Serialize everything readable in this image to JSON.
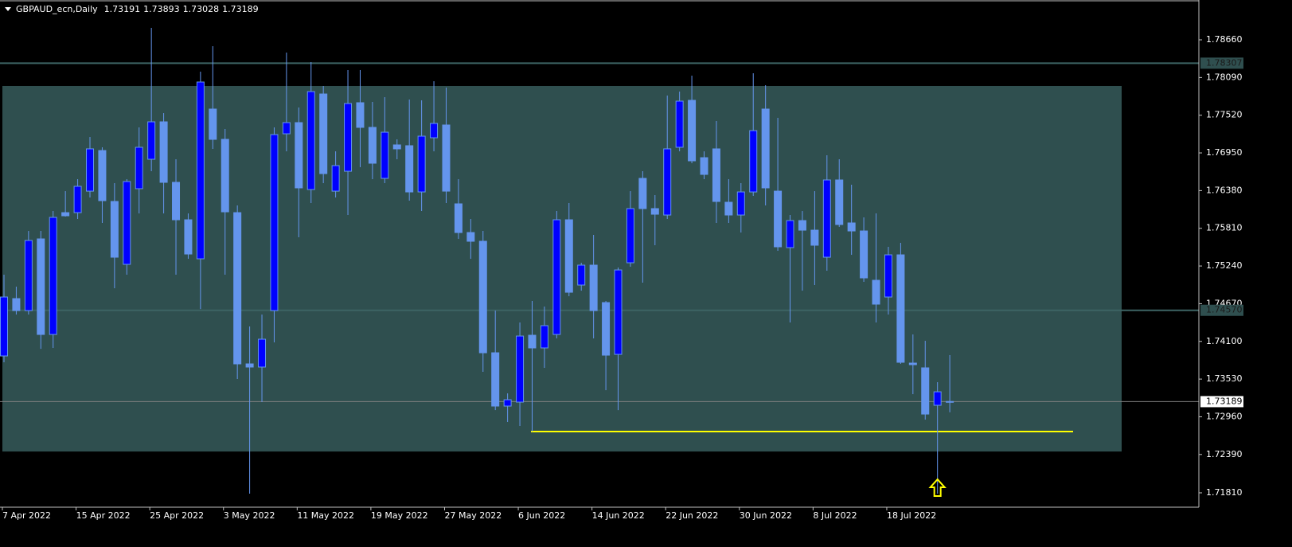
{
  "chart_data": {
    "type": "candlestick",
    "title": "GBPAUD_ecn,Daily",
    "categories": [
      "7 Apr 2022",
      null,
      null,
      null,
      null,
      null,
      "15 Apr 2022",
      null,
      null,
      null,
      null,
      null,
      "25 Apr 2022",
      null,
      null,
      null,
      null,
      null,
      "3 May 2022",
      null,
      null,
      null,
      null,
      null,
      "11 May 2022",
      null,
      null,
      null,
      null,
      null,
      "19 May 2022",
      null,
      null,
      null,
      null,
      null,
      "27 May 2022",
      null,
      null,
      null,
      null,
      null,
      "6 Jun 2022",
      null,
      null,
      null,
      null,
      null,
      "14 Jun 2022",
      null,
      null,
      null,
      null,
      null,
      "22 Jun 2022",
      null,
      null,
      null,
      null,
      null,
      "30 Jun 2022",
      null,
      null,
      null,
      null,
      null,
      "8 Jul 2022",
      null,
      null,
      null,
      null,
      null,
      "18 Jul 2022",
      null,
      null,
      null,
      null,
      null
    ],
    "open": [
      1.7388,
      1.74747,
      1.74566,
      1.7565,
      1.74205,
      1.76047,
      1.76047,
      1.76372,
      1.76986,
      1.76216,
      1.75265,
      1.76409,
      1.76854,
      1.7742,
      1.76505,
      1.75939,
      1.75349,
      1.77613,
      1.77155,
      1.76047,
      1.7376,
      1.73712,
      1.74566,
      1.77239,
      1.77408,
      1.76396,
      1.77841,
      1.76372,
      1.76673,
      1.77709,
      1.77336,
      1.76565,
      1.77071,
      1.77059,
      1.7636,
      1.77179,
      1.77372,
      1.7618,
      1.75746,
      1.75614,
      1.73928,
      1.73122,
      1.73182,
      1.74193,
      1.74001,
      1.74205,
      1.75939,
      1.74952,
      1.75253,
      1.74687,
      1.73904,
      1.75289,
      1.76565,
      1.76108,
      1.76011,
      1.77035,
      1.77745,
      1.76878,
      1.77011,
      1.76204,
      1.76011,
      1.7636,
      1.77613,
      1.76372,
      1.75518,
      1.75927,
      1.75782,
      1.75373,
      1.76541,
      1.75891,
      1.7577,
      1.75024,
      1.74771,
      1.75409,
      1.73772,
      1.737,
      1.73134,
      1.73191
    ],
    "high": [
      1.75108,
      1.74928,
      1.7577,
      1.7577,
      1.76071,
      1.76372,
      1.76553,
      1.77191,
      1.77035,
      1.76493,
      1.76553,
      1.77336,
      1.78841,
      1.77552,
      1.76854,
      1.76035,
      1.78178,
      1.78564,
      1.77311,
      1.76156,
      1.74326,
      1.74506,
      1.77336,
      1.78467,
      1.77637,
      1.78323,
      1.77962,
      1.76974,
      1.78203,
      1.78203,
      1.77721,
      1.77793,
      1.77155,
      1.77757,
      1.77745,
      1.78034,
      1.77938,
      1.76553,
      1.75951,
      1.7577,
      1.74566,
      1.73314,
      1.74386,
      1.74711,
      1.74627,
      1.76071,
      1.76192,
      1.75289,
      1.7571,
      1.74711,
      1.75217,
      1.76372,
      1.76673,
      1.76312,
      1.77817,
      1.77877,
      1.78118,
      1.76974,
      1.77432,
      1.76553,
      1.76493,
      1.78154,
      1.77974,
      1.7748,
      1.76011,
      1.76071,
      1.76372,
      1.76914,
      1.76854,
      1.76469,
      1.75975,
      1.76035,
      1.7553,
      1.7559,
      1.74205,
      1.74109,
      1.73483,
      1.73893
    ],
    "low": [
      1.73784,
      1.74506,
      1.74506,
      1.73988,
      1.74001,
      1.75987,
      1.75951,
      1.76276,
      1.75891,
      1.74904,
      1.75108,
      1.76035,
      1.76673,
      1.76035,
      1.75108,
      1.75349,
      1.7459,
      1.77011,
      1.75108,
      1.73531,
      1.71797,
      1.73182,
      1.74085,
      1.76974,
      1.75674,
      1.76192,
      1.76493,
      1.76276,
      1.76011,
      1.76734,
      1.76553,
      1.76493,
      1.76854,
      1.76228,
      1.76071,
      1.76974,
      1.76192,
      1.7565,
      1.75349,
      1.73639,
      1.73061,
      1.72881,
      1.72821,
      1.72736,
      1.737,
      1.74145,
      1.74783,
      1.74867,
      1.74145,
      1.73362,
      1.73061,
      1.75229,
      1.74988,
      1.75554,
      1.75951,
      1.76974,
      1.76794,
      1.76553,
      1.75891,
      1.75891,
      1.75746,
      1.763,
      1.76156,
      1.75469,
      1.74386,
      1.74867,
      1.74952,
      1.75168,
      1.75831,
      1.75409,
      1.75,
      1.74386,
      1.74506,
      1.7376,
      1.73302,
      1.72917,
      1.71797,
      1.73028
    ],
    "close": [
      1.74771,
      1.74566,
      1.75626,
      1.74205,
      1.75975,
      1.75999,
      1.76445,
      1.77011,
      1.76228,
      1.75373,
      1.76517,
      1.77035,
      1.7742,
      1.76505,
      1.75939,
      1.75421,
      1.78022,
      1.77155,
      1.76059,
      1.7376,
      1.73712,
      1.74133,
      1.77227,
      1.77408,
      1.76421,
      1.77877,
      1.76637,
      1.76758,
      1.77697,
      1.77336,
      1.76794,
      1.77263,
      1.77011,
      1.7636,
      1.77203,
      1.77396,
      1.76372,
      1.75746,
      1.75614,
      1.73928,
      1.73122,
      1.73218,
      1.74181,
      1.74001,
      1.74338,
      1.75939,
      1.74843,
      1.75253,
      1.74566,
      1.73892,
      1.7518,
      1.76108,
      1.76108,
      1.76023,
      1.77011,
      1.77733,
      1.7683,
      1.76625,
      1.76216,
      1.76011,
      1.7636,
      1.77287,
      1.76421,
      1.7553,
      1.75927,
      1.75782,
      1.75554,
      1.76541,
      1.75867,
      1.7577,
      1.7506,
      1.74663,
      1.75409,
      1.73784,
      1.73748,
      1.73001,
      1.73338,
      1.73189
    ],
    "up_color": "#0000ff",
    "down_color": "#6495ed",
    "ylim": [
      1.71593,
      1.79238
    ],
    "yticks": [
      {
        "value": 1.7866,
        "label": "1.78660"
      },
      {
        "value": 1.7809,
        "label": "1.78090"
      },
      {
        "value": 1.7752,
        "label": "1.77520"
      },
      {
        "value": 1.7695,
        "label": "1.76950"
      },
      {
        "value": 1.7638,
        "label": "1.76380"
      },
      {
        "value": 1.7581,
        "label": "1.75810"
      },
      {
        "value": 1.7524,
        "label": "1.75240"
      },
      {
        "value": 1.7467,
        "label": "1.74670"
      },
      {
        "value": 1.741,
        "label": "1.74100"
      },
      {
        "value": 1.7353,
        "label": "1.73530"
      },
      {
        "value": 1.7296,
        "label": "1.72960"
      },
      {
        "value": 1.7239,
        "label": "1.72390"
      },
      {
        "value": 1.7181,
        "label": "1.71810"
      }
    ],
    "price_lines": [
      1.78307,
      {
        "value": 1.7457,
        "label": "1.74570"
      }
    ],
    "zone": [
      1.72435,
      1.77962
    ],
    "support_line": 1.72736,
    "grid": false
  }
}
